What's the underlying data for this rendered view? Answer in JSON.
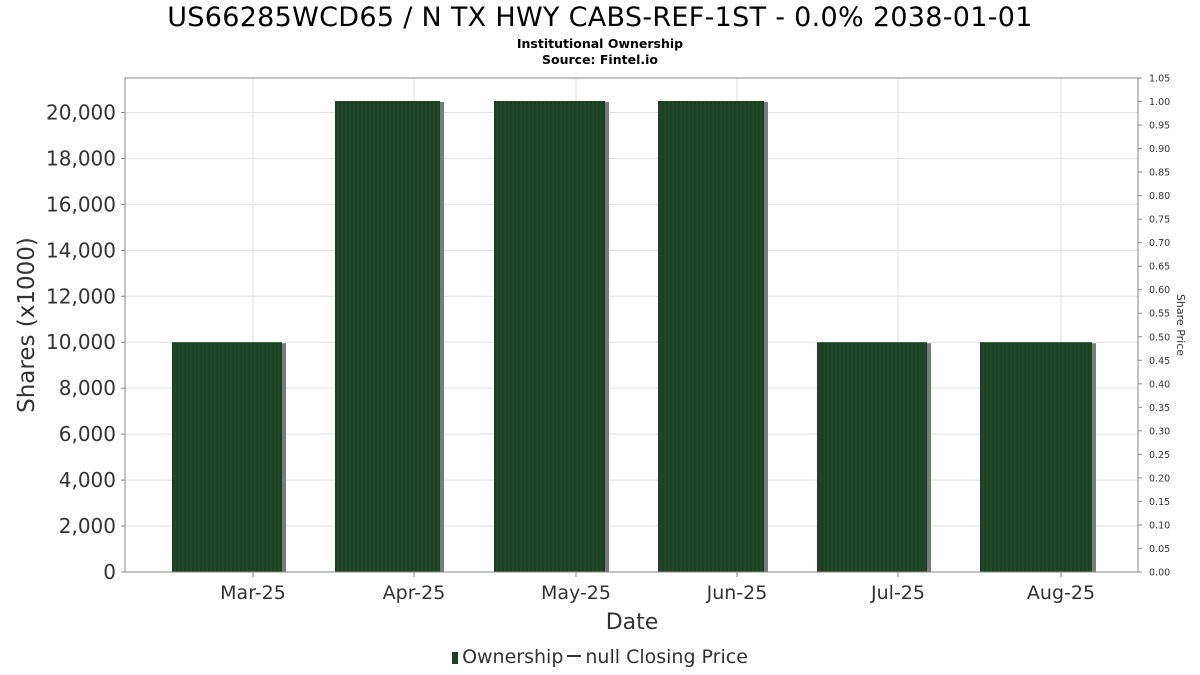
{
  "chart_data": {
    "type": "bar",
    "title": "US66285WCD65 / N TX HWY CABS-REF-1ST - 0.0% 2038-01-01",
    "subtitle": "Institutional Ownership",
    "source": "Source: Fintel.io",
    "xlabel": "Date",
    "ylabel": "Shares (x1000)",
    "y2label": "Share Price",
    "categories": [
      "Mar-25",
      "Apr-25",
      "May-25",
      "Jun-25",
      "Jul-25",
      "Aug-25"
    ],
    "series": [
      {
        "name": "Ownership",
        "values": [
          10000,
          20500,
          20500,
          20500,
          10000,
          10000
        ]
      }
    ],
    "ylim": [
      0,
      21500
    ],
    "yticks": [
      "0",
      "2,000",
      "4,000",
      "6,000",
      "8,000",
      "10,000",
      "12,000",
      "14,000",
      "16,000",
      "18,000",
      "20,000"
    ],
    "y2lim": [
      0,
      1.05
    ],
    "y2ticks": [
      "0.00",
      "0.05",
      "0.10",
      "0.15",
      "0.20",
      "0.25",
      "0.30",
      "0.35",
      "0.40",
      "0.45",
      "0.50",
      "0.55",
      "0.60",
      "0.65",
      "0.70",
      "0.75",
      "0.80",
      "0.85",
      "0.90",
      "0.95",
      "1.00",
      "1.05"
    ],
    "legend": [
      "Ownership",
      "null Closing Price"
    ],
    "legend_position": "bottom-center",
    "grid": true,
    "colors": {
      "bar": "#1a3f22",
      "bar_stripe": "#2d5a35",
      "bar_shadow": "#7a7a7a",
      "grid": "#e2e2e2",
      "axis": "#888888"
    }
  }
}
